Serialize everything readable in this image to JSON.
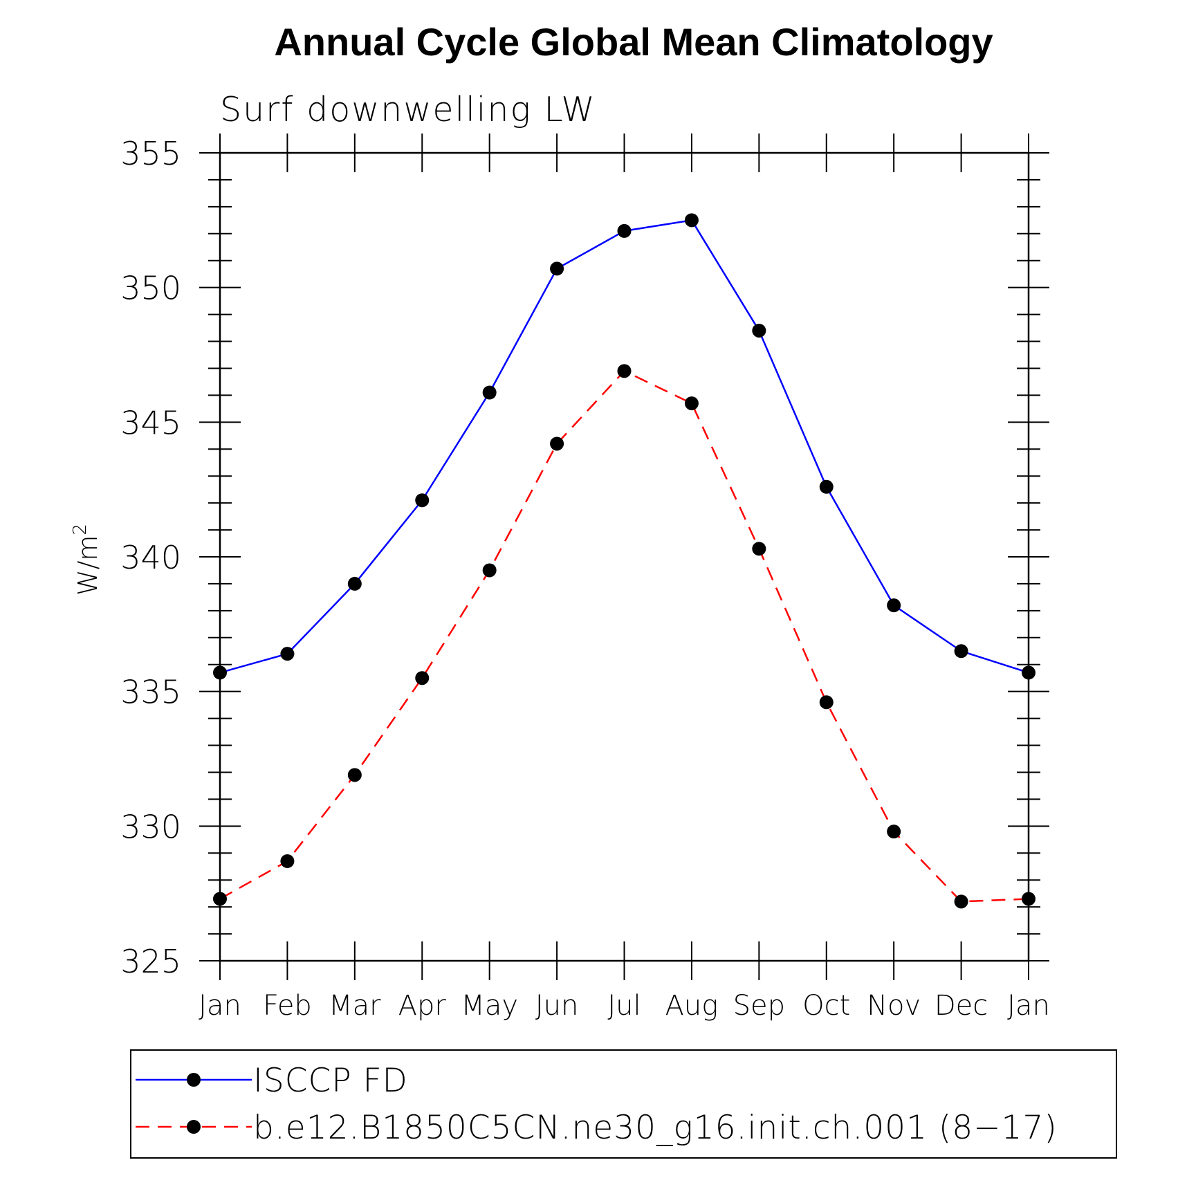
{
  "chart_data": {
    "type": "line",
    "title": "Annual Cycle Global Mean Climatology",
    "subtitle": "Surf downwelling LW",
    "ylabel": "W/m",
    "ylabel_superscript": "2",
    "xlabel": "",
    "categories": [
      "Jan",
      "Feb",
      "Mar",
      "Apr",
      "May",
      "Jun",
      "Jul",
      "Aug",
      "Sep",
      "Oct",
      "Nov",
      "Dec",
      "Jan"
    ],
    "ylim": [
      325,
      355
    ],
    "yticks": [
      325,
      330,
      335,
      340,
      345,
      350,
      355
    ],
    "y_minor_step": 1,
    "grid": false,
    "legend_position": "bottom",
    "series": [
      {
        "name": "ISCCP FD",
        "color": "#0000ff",
        "line_style": "solid",
        "marker": "filled-circle",
        "values": [
          335.7,
          336.4,
          339.0,
          342.1,
          346.1,
          350.7,
          352.1,
          352.5,
          348.4,
          342.6,
          338.2,
          336.5,
          335.7
        ]
      },
      {
        "name": "b.e12.B1850C5CN.ne30_g16.init.ch.001 (8−17)",
        "color": "#ff0000",
        "line_style": "dashed",
        "marker": "filled-circle",
        "values": [
          327.3,
          328.7,
          331.9,
          335.5,
          339.5,
          344.2,
          346.9,
          345.7,
          340.3,
          334.6,
          329.8,
          327.2,
          327.3
        ]
      }
    ]
  }
}
